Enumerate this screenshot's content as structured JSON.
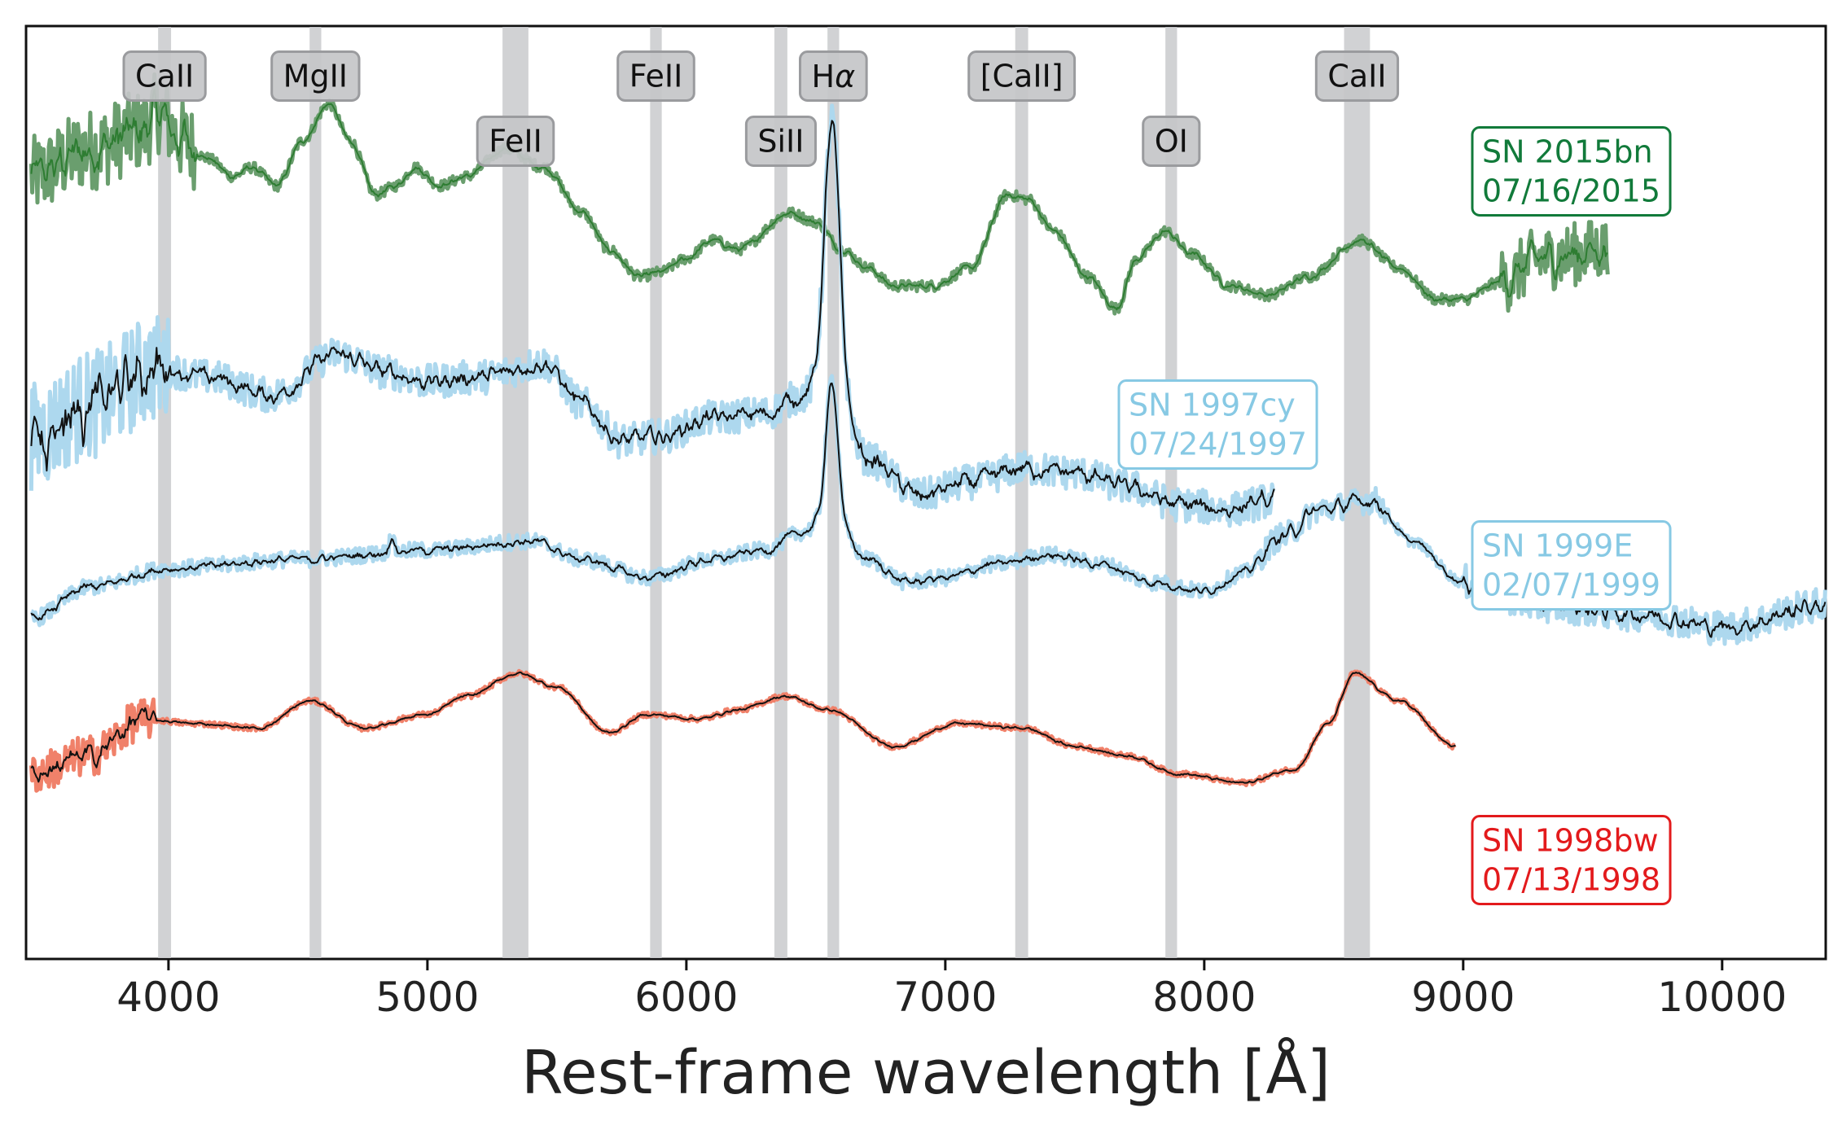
{
  "chart_data": {
    "type": "line",
    "title": "",
    "xlabel": "Rest-frame wavelength [Å]",
    "ylabel": "",
    "xlim": [
      3450,
      10400
    ],
    "xticks": [
      4000,
      5000,
      6000,
      7000,
      8000,
      9000,
      10000
    ],
    "xtick_labels": [
      "4000",
      "5000",
      "6000",
      "7000",
      "8000",
      "9000",
      "10000"
    ],
    "yticks_shown": false,
    "line_bands": [
      {
        "label": "CaII",
        "range": [
          3960,
          4010
        ],
        "label_row": "upper"
      },
      {
        "label": "MgII",
        "range": [
          4545,
          4590
        ],
        "label_row": "upper"
      },
      {
        "label": "FeII",
        "range": [
          5290,
          5390
        ],
        "label_row": "lower"
      },
      {
        "label": "FeII",
        "range": [
          5860,
          5905
        ],
        "label_row": "upper"
      },
      {
        "label": "SiII",
        "range": [
          6340,
          6390
        ],
        "label_row": "lower"
      },
      {
        "label": "Hα",
        "range": [
          6545,
          6590
        ],
        "label_row": "upper"
      },
      {
        "label": "[CaII]",
        "range": [
          7270,
          7320
        ],
        "label_row": "upper"
      },
      {
        "label": "OI",
        "range": [
          7850,
          7895
        ],
        "label_row": "lower"
      },
      {
        "label": "CaII",
        "range": [
          8540,
          8640
        ],
        "label_row": "upper"
      }
    ],
    "series": [
      {
        "name": "SN 2015bn",
        "date": "07/16/2015",
        "color": "#2e7d32",
        "raw_color": "#6a9e6e",
        "label_color": "#117a3a",
        "x_range": [
          3470,
          9560
        ],
        "noise": [
          {
            "range": [
              3470,
              4100
            ],
            "amp": 0.09
          },
          {
            "range": [
              9150,
              9560
            ],
            "amp": 0.07
          }
        ],
        "points": [
          [
            3470,
            0.72
          ],
          [
            3700,
            0.78
          ],
          [
            3900,
            0.82
          ],
          [
            3960,
            0.86
          ],
          [
            4050,
            0.8
          ],
          [
            4150,
            0.76
          ],
          [
            4250,
            0.72
          ],
          [
            4320,
            0.74
          ],
          [
            4420,
            0.7
          ],
          [
            4520,
            0.8
          ],
          [
            4620,
            0.88
          ],
          [
            4700,
            0.8
          ],
          [
            4800,
            0.68
          ],
          [
            4880,
            0.7
          ],
          [
            4950,
            0.74
          ],
          [
            5050,
            0.7
          ],
          [
            5150,
            0.72
          ],
          [
            5300,
            0.78
          ],
          [
            5450,
            0.74
          ],
          [
            5600,
            0.64
          ],
          [
            5700,
            0.56
          ],
          [
            5820,
            0.5
          ],
          [
            5900,
            0.51
          ],
          [
            6000,
            0.54
          ],
          [
            6100,
            0.58
          ],
          [
            6200,
            0.56
          ],
          [
            6400,
            0.64
          ],
          [
            6500,
            0.62
          ],
          [
            6600,
            0.56
          ],
          [
            6700,
            0.52
          ],
          [
            6800,
            0.48
          ],
          [
            6950,
            0.48
          ],
          [
            7100,
            0.52
          ],
          [
            7240,
            0.68
          ],
          [
            7320,
            0.67
          ],
          [
            7420,
            0.6
          ],
          [
            7550,
            0.5
          ],
          [
            7660,
            0.43
          ],
          [
            7740,
            0.54
          ],
          [
            7850,
            0.6
          ],
          [
            7950,
            0.55
          ],
          [
            8100,
            0.48
          ],
          [
            8250,
            0.46
          ],
          [
            8400,
            0.5
          ],
          [
            8600,
            0.58
          ],
          [
            8750,
            0.52
          ],
          [
            8900,
            0.45
          ],
          [
            9000,
            0.45
          ],
          [
            9150,
            0.49
          ],
          [
            9300,
            0.54
          ],
          [
            9560,
            0.56
          ]
        ],
        "peaks": []
      },
      {
        "name": "SN 1997cy",
        "date": "07/24/1997",
        "color": "#111111",
        "raw_color": "#add8ee",
        "label_color": "#87c9e4",
        "x_range": [
          3470,
          8270
        ],
        "noise": [
          {
            "range": [
              3470,
              4000
            ],
            "amp": 0.12
          },
          {
            "range": [
              4000,
              8270
            ],
            "amp": 0.038
          }
        ],
        "points": [
          [
            3470,
            0.15
          ],
          [
            3700,
            0.22
          ],
          [
            3950,
            0.3
          ],
          [
            4150,
            0.28
          ],
          [
            4400,
            0.24
          ],
          [
            4650,
            0.33
          ],
          [
            4850,
            0.29
          ],
          [
            5000,
            0.27
          ],
          [
            5200,
            0.28
          ],
          [
            5450,
            0.31
          ],
          [
            5600,
            0.22
          ],
          [
            5750,
            0.14
          ],
          [
            5900,
            0.15
          ],
          [
            6100,
            0.19
          ],
          [
            6300,
            0.2
          ],
          [
            6450,
            0.24
          ],
          [
            6550,
            0.3
          ],
          [
            6700,
            0.1
          ],
          [
            6900,
            0.02
          ],
          [
            7100,
            0.05
          ],
          [
            7300,
            0.08
          ],
          [
            7500,
            0.07
          ],
          [
            7700,
            0.04
          ],
          [
            7900,
            0.0
          ],
          [
            8100,
            -0.01
          ],
          [
            8270,
            0.01
          ]
        ],
        "peaks": [
          {
            "x": 6563,
            "h": 0.55,
            "w": 28
          }
        ]
      },
      {
        "name": "SN 1999E",
        "date": "02/07/1999",
        "color": "#111111",
        "raw_color": "#add8ee",
        "label_color": "#87c9e4",
        "x_range": [
          3470,
          10400
        ],
        "noise": [
          {
            "range": [
              3470,
              8200
            ],
            "amp": 0.018
          },
          {
            "range": [
              8200,
              8700
            ],
            "amp": 0.03
          },
          {
            "range": [
              9000,
              10400
            ],
            "amp": 0.038
          }
        ],
        "points": [
          [
            3470,
            -0.25
          ],
          [
            3700,
            -0.18
          ],
          [
            4000,
            -0.14
          ],
          [
            4500,
            -0.12
          ],
          [
            5000,
            -0.1
          ],
          [
            5400,
            -0.08
          ],
          [
            5600,
            -0.12
          ],
          [
            5850,
            -0.16
          ],
          [
            6100,
            -0.12
          ],
          [
            6300,
            -0.1
          ],
          [
            6450,
            -0.06
          ],
          [
            6550,
            -0.02
          ],
          [
            6700,
            -0.12
          ],
          [
            6850,
            -0.17
          ],
          [
            7000,
            -0.16
          ],
          [
            7200,
            -0.13
          ],
          [
            7400,
            -0.11
          ],
          [
            7600,
            -0.13
          ],
          [
            7800,
            -0.17
          ],
          [
            8000,
            -0.19
          ],
          [
            8150,
            -0.15
          ],
          [
            8300,
            -0.07
          ],
          [
            8450,
            -0.01
          ],
          [
            8650,
            0.01
          ],
          [
            8800,
            -0.08
          ],
          [
            9000,
            -0.17
          ],
          [
            9300,
            -0.22
          ],
          [
            9700,
            -0.24
          ],
          [
            10000,
            -0.27
          ],
          [
            10400,
            -0.22
          ]
        ],
        "peaks": [
          {
            "x": 6563,
            "h": 0.3,
            "w": 22
          },
          {
            "x": 4861,
            "h": 0.04,
            "w": 8
          }
        ]
      },
      {
        "name": "SN 1998bw",
        "date": "07/13/1998",
        "color": "#111111",
        "raw_color": "#f0816a",
        "label_color": "#e31a1c",
        "x_range": [
          3470,
          8970
        ],
        "noise": [
          {
            "range": [
              3470,
              3950
            ],
            "amp": 0.045
          },
          {
            "range": [
              3950,
              8970
            ],
            "amp": 0.006
          }
        ],
        "points": [
          [
            3470,
            -0.59
          ],
          [
            3700,
            -0.55
          ],
          [
            3900,
            -0.47
          ],
          [
            4100,
            -0.48
          ],
          [
            4350,
            -0.49
          ],
          [
            4550,
            -0.43
          ],
          [
            4750,
            -0.49
          ],
          [
            5000,
            -0.46
          ],
          [
            5150,
            -0.42
          ],
          [
            5350,
            -0.37
          ],
          [
            5500,
            -0.4
          ],
          [
            5700,
            -0.5
          ],
          [
            5850,
            -0.46
          ],
          [
            6050,
            -0.47
          ],
          [
            6200,
            -0.45
          ],
          [
            6380,
            -0.42
          ],
          [
            6550,
            -0.45
          ],
          [
            6800,
            -0.53
          ],
          [
            7050,
            -0.48
          ],
          [
            7300,
            -0.49
          ],
          [
            7500,
            -0.53
          ],
          [
            7700,
            -0.55
          ],
          [
            7900,
            -0.59
          ],
          [
            8150,
            -0.61
          ],
          [
            8350,
            -0.58
          ],
          [
            8480,
            -0.48
          ],
          [
            8580,
            -0.37
          ],
          [
            8750,
            -0.43
          ],
          [
            8970,
            -0.53
          ]
        ],
        "peaks": []
      }
    ]
  },
  "legend_labels": [
    {
      "name": "SN 2015bn",
      "date": "07/16/2015"
    },
    {
      "name": "SN 1997cy",
      "date": "07/24/1997"
    },
    {
      "name": "SN 1999E",
      "date": "02/07/1999"
    },
    {
      "name": "SN 1998bw",
      "date": "07/13/1998"
    }
  ]
}
